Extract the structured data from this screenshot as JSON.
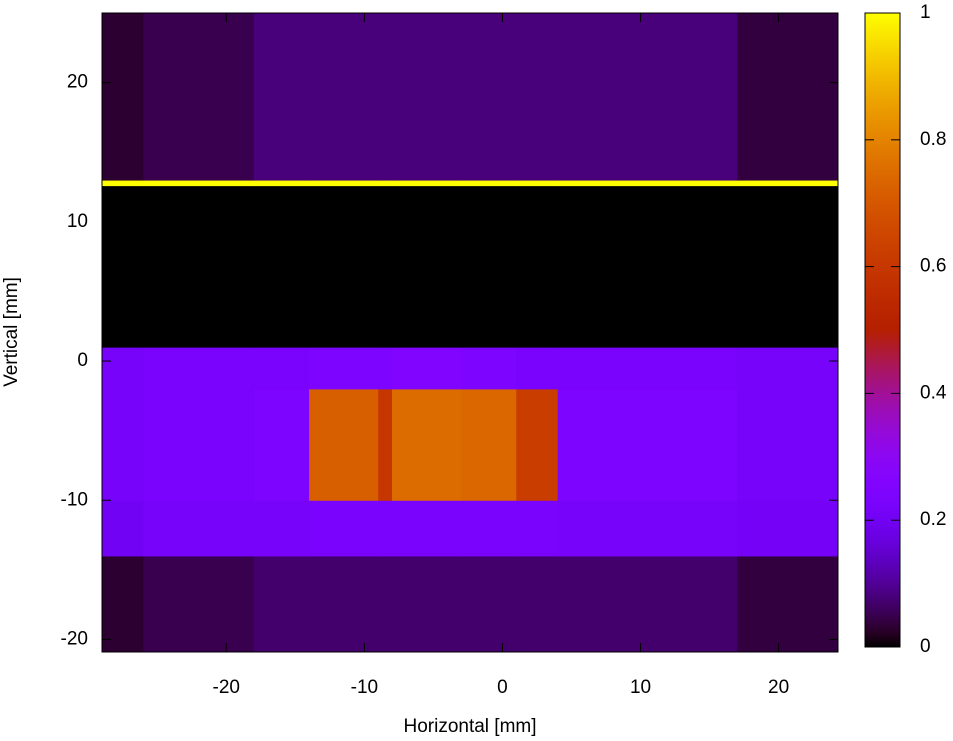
{
  "chart_data": {
    "type": "heatmap",
    "x_label": "Horizontal [mm]",
    "y_label": "Vertical [mm]",
    "x_edges": [
      -29,
      -26,
      -18,
      -14,
      -9,
      -8,
      -3,
      1,
      4,
      17,
      24.3
    ],
    "y_edges": [
      -20.9,
      -14,
      -10,
      -2,
      1,
      12.6,
      13,
      25
    ],
    "values": [
      [
        0.03,
        0.05,
        0.07,
        0.07,
        0.07,
        0.07,
        0.07,
        0.07,
        0.07,
        0.04
      ],
      [
        0.2,
        0.22,
        0.22,
        0.23,
        0.23,
        0.23,
        0.23,
        0.23,
        0.22,
        0.21
      ],
      [
        0.22,
        0.23,
        0.24,
        0.72,
        0.6,
        0.75,
        0.74,
        0.62,
        0.24,
        0.22
      ],
      [
        0.22,
        0.23,
        0.23,
        0.24,
        0.24,
        0.25,
        0.24,
        0.23,
        0.23,
        0.22
      ],
      [
        0,
        0,
        0,
        0,
        0,
        0,
        0,
        0,
        0,
        0
      ],
      [
        1,
        1,
        1,
        1,
        1,
        1,
        1,
        1,
        1,
        1
      ],
      [
        0.03,
        0.05,
        0.08,
        0.08,
        0.08,
        0.08,
        0.08,
        0.08,
        0.08,
        0.04
      ]
    ],
    "xlim": [
      -29,
      24.3
    ],
    "ylim": [
      -20.9,
      25
    ],
    "xticks": [
      -20,
      -10,
      0,
      10,
      20
    ],
    "yticks": [
      -20,
      -10,
      0,
      10,
      20
    ],
    "colormap": "gnuplot",
    "colorbar": {
      "lim": [
        0,
        1
      ],
      "ticks": [
        0,
        0.2,
        0.4,
        0.6,
        0.8,
        1
      ]
    }
  }
}
